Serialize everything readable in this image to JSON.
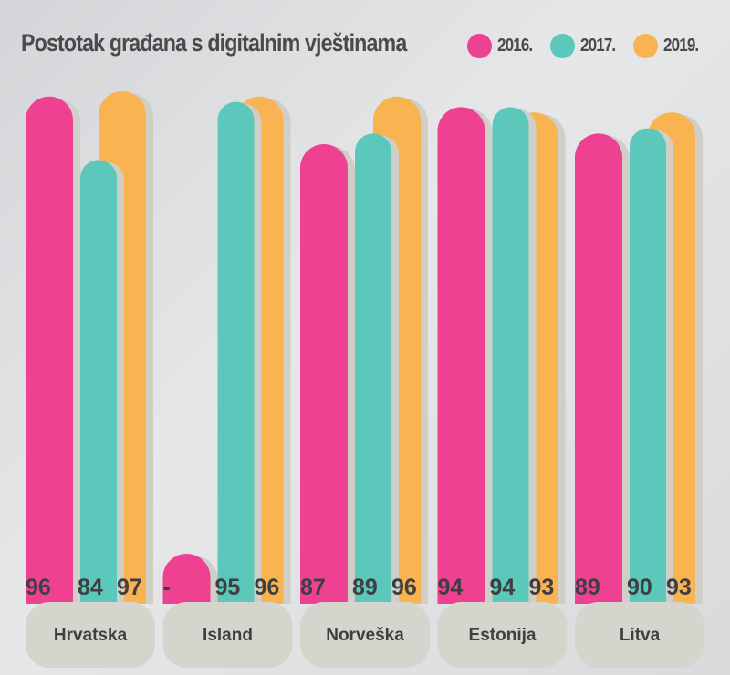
{
  "chart_data": {
    "type": "bar",
    "title": "Postotak građana s digitalnim vještinama",
    "xlabel": "",
    "ylabel": "",
    "ylim": [
      70,
      100
    ],
    "grid": false,
    "legend_position": "top-right",
    "categories": [
      "Hrvatska",
      "Island",
      "Norveška",
      "Estonija",
      "Litva"
    ],
    "series": [
      {
        "name": "2016.",
        "color": "#ee4192",
        "values": [
          96,
          null,
          87,
          94,
          89
        ],
        "labels": [
          "96",
          "-",
          "87",
          "94",
          "89"
        ]
      },
      {
        "name": "2017.",
        "color": "#5cc8bb",
        "values": [
          84,
          95,
          89,
          94,
          90
        ],
        "labels": [
          "84",
          "95",
          "89",
          "94",
          "90"
        ]
      },
      {
        "name": "2019.",
        "color": "#f9b350",
        "values": [
          97,
          96,
          96,
          93,
          93
        ],
        "labels": [
          "97",
          "96",
          "96",
          "93",
          "93"
        ]
      }
    ]
  },
  "colors": {
    "shadow": "#cfcfc8",
    "pill": "#d5d5cd",
    "text": "#3f3f41"
  }
}
